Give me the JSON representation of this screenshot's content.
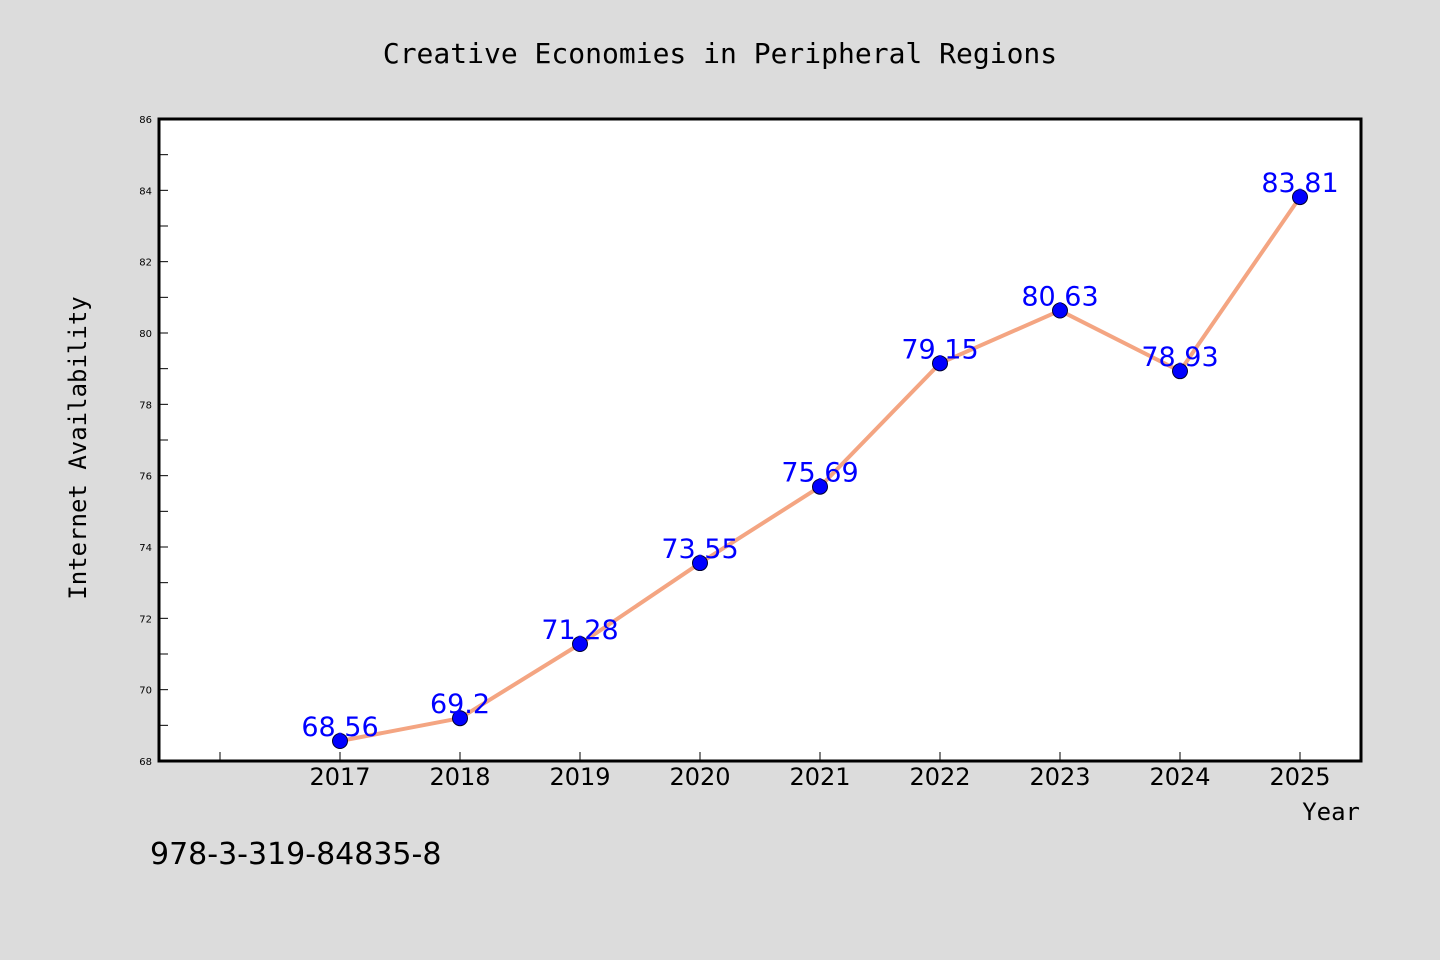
{
  "chart_data": {
    "type": "line",
    "title": "Creative Economies in Peripheral Regions",
    "xlabel": "Year",
    "ylabel": "Internet Availability",
    "categories": [
      "2017",
      "2018",
      "2019",
      "2020",
      "2021",
      "2022",
      "2023",
      "2024",
      "2025"
    ],
    "values": [
      68.56,
      69.2,
      71.28,
      73.55,
      75.69,
      79.15,
      80.63,
      78.93,
      83.81
    ],
    "data_labels": [
      "68.56",
      "69.2",
      "71.28",
      "73.55",
      "75.69",
      "79.15",
      "80.63",
      "78.93",
      "83.81"
    ],
    "ylim": [
      68,
      86
    ],
    "y_ticks": [
      "68",
      "70",
      "72",
      "74",
      "76",
      "78",
      "80",
      "82",
      "84",
      "86"
    ],
    "grid": false,
    "legend": "none",
    "line_color": "#f4a582",
    "marker_color": "#0000ff",
    "label_color": "#0000ff",
    "background_color": "#dcdcdc"
  },
  "footer": {
    "isbn": "978-3-319-84835-8"
  }
}
